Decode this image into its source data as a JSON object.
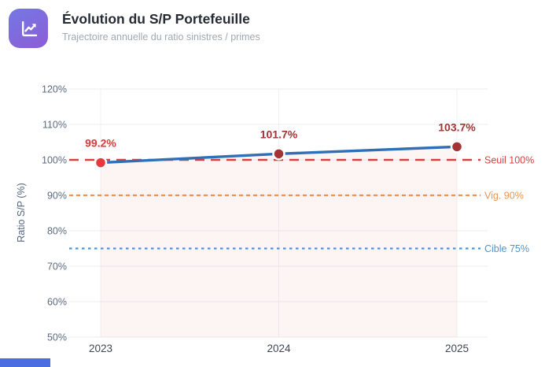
{
  "header": {
    "title": "Évolution du S/P Portefeuille",
    "subtitle": "Trajectoire annuelle du ratio sinistres / primes",
    "icon": "line-chart-icon",
    "icon_gradient_start": "#7478e4",
    "icon_gradient_end": "#8d5cd6"
  },
  "chart_data": {
    "type": "line",
    "x": [
      "2023",
      "2024",
      "2025"
    ],
    "series": [
      {
        "name": "Ratio S/P",
        "values": [
          99.2,
          101.7,
          103.7
        ],
        "labels": [
          "99.2%",
          "101.7%",
          "103.7%"
        ],
        "line_color": "#2e6fb7",
        "point_colors": [
          "#e6393d",
          "#a23434",
          "#a23434"
        ],
        "label_colors": [
          "#e0393c",
          "#a23434",
          "#a23434"
        ],
        "area_fill": "rgba(229,83,66,0.06)"
      }
    ],
    "ylabel": "Ratio S/P (%)",
    "ylim": [
      50,
      120
    ],
    "ytick_step": 10,
    "ytick_suffix": "%",
    "grid": true,
    "legend": "none",
    "reference_lines": [
      {
        "label": "Seuil 100%",
        "value": 100,
        "color": "#d84040",
        "style": "dashed"
      },
      {
        "label": "Vig. 90%",
        "value": 90,
        "color": "#ef9350",
        "style": "dashed-small"
      },
      {
        "label": "Cible 75%",
        "value": 75,
        "color": "#4d95d4",
        "style": "dotted"
      }
    ]
  },
  "colors": {
    "ytick_text": "#5d6b80",
    "xtick_text": "#3f4854",
    "axis_title_text": "#55657f",
    "gridline": "#ececef",
    "vertical_gridline": "#f1f1f4",
    "corner_marker": "#4a6de0"
  }
}
